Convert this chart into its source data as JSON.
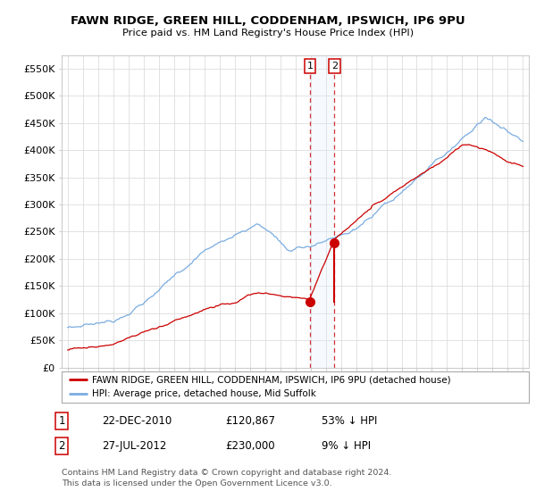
{
  "title": "FAWN RIDGE, GREEN HILL, CODDENHAM, IPSWICH, IP6 9PU",
  "subtitle": "Price paid vs. HM Land Registry's House Price Index (HPI)",
  "legend_label_red": "FAWN RIDGE, GREEN HILL, CODDENHAM, IPSWICH, IP6 9PU (detached house)",
  "legend_label_blue": "HPI: Average price, detached house, Mid Suffolk",
  "annotation1_num": "1",
  "annotation1_date": "22-DEC-2010",
  "annotation1_price": "£120,867",
  "annotation1_hpi": "53% ↓ HPI",
  "annotation2_num": "2",
  "annotation2_date": "27-JUL-2012",
  "annotation2_price": "£230,000",
  "annotation2_hpi": "9% ↓ HPI",
  "footer": "Contains HM Land Registry data © Crown copyright and database right 2024.\nThis data is licensed under the Open Government Licence v3.0.",
  "red_color": "#cc0000",
  "blue_color": "#7aace0",
  "vline_color": "#cc0000",
  "span_color": "#ddeeff",
  "background_color": "#ffffff",
  "grid_color": "#dddddd",
  "yticks": [
    0,
    50000,
    100000,
    150000,
    200000,
    250000,
    300000,
    350000,
    400000,
    450000,
    500000,
    550000
  ],
  "ytick_labels": [
    "£0",
    "£50K",
    "£100K",
    "£150K",
    "£200K",
    "£250K",
    "£300K",
    "£350K",
    "£400K",
    "£450K",
    "£500K",
    "£550K"
  ],
  "sale1_year": 2010.97,
  "sale1_price": 120867,
  "sale2_year": 2012.58,
  "sale2_price": 230000
}
